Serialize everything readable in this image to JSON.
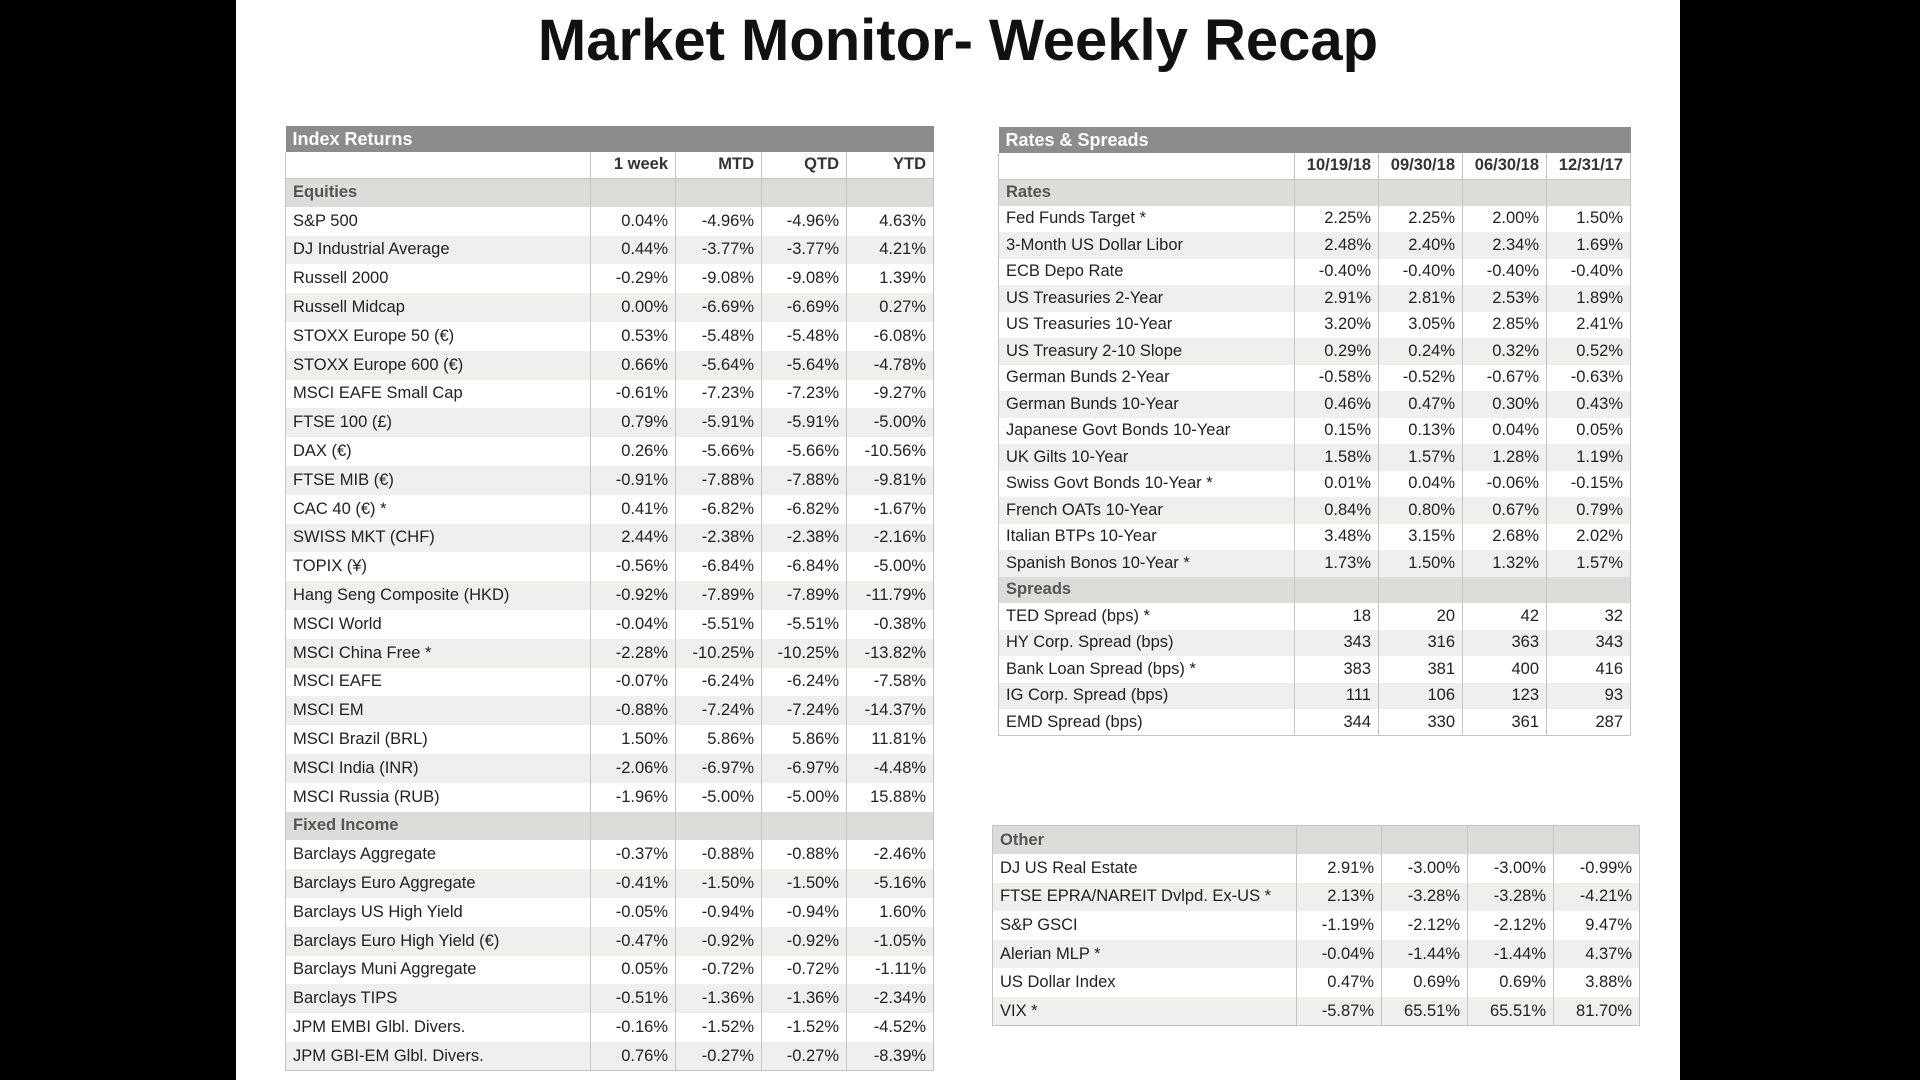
{
  "title": "Market Monitor- Weekly Recap",
  "index_returns": {
    "title": "Index Returns",
    "columns": [
      "1 week",
      "MTD",
      "QTD",
      "YTD"
    ],
    "sections": [
      {
        "label": "Equities",
        "rows": [
          [
            "S&P 500",
            "0.04%",
            "-4.96%",
            "-4.96%",
            "4.63%"
          ],
          [
            "DJ Industrial Average",
            "0.44%",
            "-3.77%",
            "-3.77%",
            "4.21%"
          ],
          [
            "Russell 2000",
            "-0.29%",
            "-9.08%",
            "-9.08%",
            "1.39%"
          ],
          [
            "Russell Midcap",
            "0.00%",
            "-6.69%",
            "-6.69%",
            "0.27%"
          ],
          [
            "STOXX Europe 50 (€)",
            "0.53%",
            "-5.48%",
            "-5.48%",
            "-6.08%"
          ],
          [
            "STOXX Europe 600 (€)",
            "0.66%",
            "-5.64%",
            "-5.64%",
            "-4.78%"
          ],
          [
            "MSCI EAFE Small Cap",
            "-0.61%",
            "-7.23%",
            "-7.23%",
            "-9.27%"
          ],
          [
            "FTSE 100 (£)",
            "0.79%",
            "-5.91%",
            "-5.91%",
            "-5.00%"
          ],
          [
            "DAX (€)",
            "0.26%",
            "-5.66%",
            "-5.66%",
            "-10.56%"
          ],
          [
            "FTSE MIB (€)",
            "-0.91%",
            "-7.88%",
            "-7.88%",
            "-9.81%"
          ],
          [
            "CAC 40 (€) *",
            "0.41%",
            "-6.82%",
            "-6.82%",
            "-1.67%"
          ],
          [
            "SWISS MKT (CHF)",
            "2.44%",
            "-2.38%",
            "-2.38%",
            "-2.16%"
          ],
          [
            "TOPIX (¥)",
            "-0.56%",
            "-6.84%",
            "-6.84%",
            "-5.00%"
          ],
          [
            "Hang Seng Composite (HKD)",
            "-0.92%",
            "-7.89%",
            "-7.89%",
            "-11.79%"
          ],
          [
            "MSCI World",
            "-0.04%",
            "-5.51%",
            "-5.51%",
            "-0.38%"
          ],
          [
            "MSCI China Free *",
            "-2.28%",
            "-10.25%",
            "-10.25%",
            "-13.82%"
          ],
          [
            "MSCI EAFE",
            "-0.07%",
            "-6.24%",
            "-6.24%",
            "-7.58%"
          ],
          [
            "MSCI EM",
            "-0.88%",
            "-7.24%",
            "-7.24%",
            "-14.37%"
          ],
          [
            "MSCI Brazil (BRL)",
            "1.50%",
            "5.86%",
            "5.86%",
            "11.81%"
          ],
          [
            "MSCI India (INR)",
            "-2.06%",
            "-6.97%",
            "-6.97%",
            "-4.48%"
          ],
          [
            "MSCI Russia (RUB)",
            "-1.96%",
            "-5.00%",
            "-5.00%",
            "15.88%"
          ]
        ]
      },
      {
        "label": "Fixed Income",
        "rows": [
          [
            "Barclays Aggregate",
            "-0.37%",
            "-0.88%",
            "-0.88%",
            "-2.46%"
          ],
          [
            "Barclays Euro Aggregate",
            "-0.41%",
            "-1.50%",
            "-1.50%",
            "-5.16%"
          ],
          [
            "Barclays US High Yield",
            "-0.05%",
            "-0.94%",
            "-0.94%",
            "1.60%"
          ],
          [
            "Barclays Euro High Yield (€)",
            "-0.47%",
            "-0.92%",
            "-0.92%",
            "-1.05%"
          ],
          [
            "Barclays Muni Aggregate",
            "0.05%",
            "-0.72%",
            "-0.72%",
            "-1.11%"
          ],
          [
            "Barclays TIPS",
            "-0.51%",
            "-1.36%",
            "-1.36%",
            "-2.34%"
          ],
          [
            "JPM EMBI Glbl. Divers.",
            "-0.16%",
            "-1.52%",
            "-1.52%",
            "-4.52%"
          ],
          [
            "JPM GBI-EM Glbl. Divers.",
            "0.76%",
            "-0.27%",
            "-0.27%",
            "-8.39%"
          ]
        ]
      }
    ]
  },
  "rates_spreads": {
    "title": "Rates & Spreads",
    "columns": [
      "10/19/18",
      "09/30/18",
      "06/30/18",
      "12/31/17"
    ],
    "sections": [
      {
        "label": "Rates",
        "rows": [
          [
            "Fed Funds Target *",
            "2.25%",
            "2.25%",
            "2.00%",
            "1.50%"
          ],
          [
            "3-Month US Dollar Libor",
            "2.48%",
            "2.40%",
            "2.34%",
            "1.69%"
          ],
          [
            "ECB Depo Rate",
            "-0.40%",
            "-0.40%",
            "-0.40%",
            "-0.40%"
          ],
          [
            "US Treasuries 2-Year",
            "2.91%",
            "2.81%",
            "2.53%",
            "1.89%"
          ],
          [
            "US Treasuries 10-Year",
            "3.20%",
            "3.05%",
            "2.85%",
            "2.41%"
          ],
          [
            "US Treasury 2-10 Slope",
            "0.29%",
            "0.24%",
            "0.32%",
            "0.52%"
          ],
          [
            "German Bunds 2-Year",
            "-0.58%",
            "-0.52%",
            "-0.67%",
            "-0.63%"
          ],
          [
            "German Bunds 10-Year",
            "0.46%",
            "0.47%",
            "0.30%",
            "0.43%"
          ],
          [
            "Japanese Govt Bonds 10-Year",
            "0.15%",
            "0.13%",
            "0.04%",
            "0.05%"
          ],
          [
            "UK Gilts 10-Year",
            "1.58%",
            "1.57%",
            "1.28%",
            "1.19%"
          ],
          [
            "Swiss Govt Bonds 10-Year *",
            "0.01%",
            "0.04%",
            "-0.06%",
            "-0.15%"
          ],
          [
            "French OATs 10-Year",
            "0.84%",
            "0.80%",
            "0.67%",
            "0.79%"
          ],
          [
            "Italian BTPs 10-Year",
            "3.48%",
            "3.15%",
            "2.68%",
            "2.02%"
          ],
          [
            "Spanish Bonos 10-Year *",
            "1.73%",
            "1.50%",
            "1.32%",
            "1.57%"
          ]
        ]
      },
      {
        "label": "Spreads",
        "rows": [
          [
            "TED Spread (bps) *",
            "18",
            "20",
            "42",
            "32"
          ],
          [
            "HY Corp. Spread (bps)",
            "343",
            "316",
            "363",
            "343"
          ],
          [
            "Bank Loan Spread (bps) *",
            "383",
            "381",
            "400",
            "416"
          ],
          [
            "IG Corp. Spread (bps)",
            "111",
            "106",
            "123",
            "93"
          ],
          [
            "EMD Spread (bps)",
            "344",
            "330",
            "361",
            "287"
          ]
        ]
      }
    ]
  },
  "other": {
    "sections": [
      {
        "label": "Other",
        "rows": [
          [
            "DJ US Real Estate",
            "2.91%",
            "-3.00%",
            "-3.00%",
            "-0.99%"
          ],
          [
            "FTSE EPRA/NAREIT Dvlpd. Ex-US *",
            "2.13%",
            "-3.28%",
            "-3.28%",
            "-4.21%"
          ],
          [
            "S&P GSCI",
            "-1.19%",
            "-2.12%",
            "-2.12%",
            "9.47%"
          ],
          [
            "Alerian MLP *",
            "-0.04%",
            "-1.44%",
            "-1.44%",
            "4.37%"
          ],
          [
            "US Dollar Index",
            "0.47%",
            "0.69%",
            "0.69%",
            "3.88%"
          ],
          [
            "VIX *",
            "-5.87%",
            "65.51%",
            "65.51%",
            "81.70%"
          ]
        ]
      }
    ]
  }
}
